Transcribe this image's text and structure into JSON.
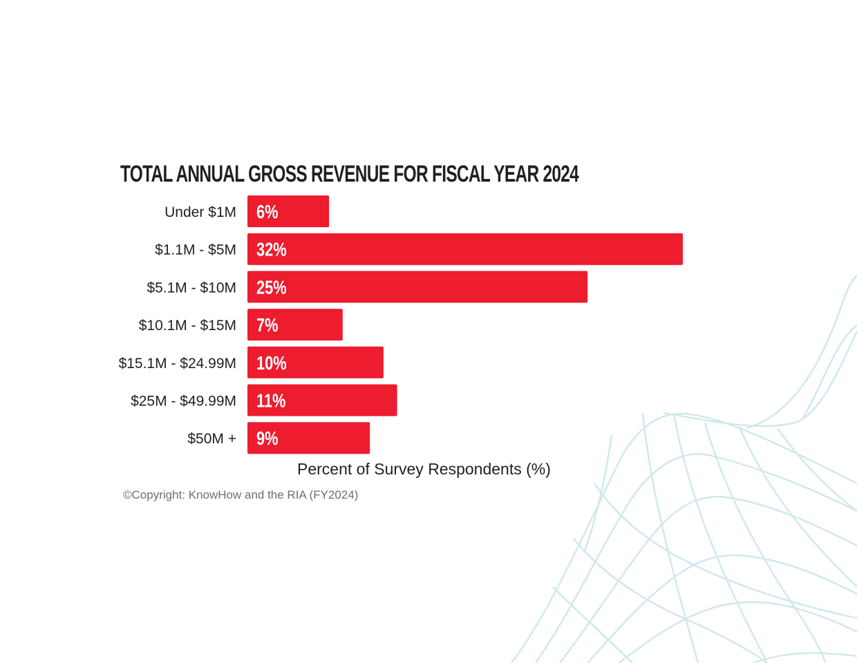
{
  "chart_data": {
    "type": "bar",
    "orientation": "horizontal",
    "title": "TOTAL ANNUAL GROSS REVENUE FOR FISCAL YEAR 2024",
    "categories": [
      "Under $1M",
      "$1.1M - $5M",
      "$5.1M - $10M",
      "$10.1M - $15M",
      "$15.1M - $24.99M",
      "$25M - $49.99M",
      "$50M +"
    ],
    "values": [
      6,
      32,
      25,
      7,
      10,
      11,
      9
    ],
    "value_labels": [
      "6%",
      "32%",
      "25%",
      "7%",
      "10%",
      "11%",
      "9%"
    ],
    "xlabel": "Percent of Survey Respondents (%)",
    "ylabel": "",
    "xlim": [
      0,
      32
    ],
    "grid": false,
    "bar_color": "#ed1c2e"
  },
  "footer": {
    "copyright": "©Copyright: KnowHow and the RIA (FY2024)"
  },
  "colors": {
    "bar": "#ed1c2e",
    "text": "#231f20",
    "muted_text": "#6d6e71",
    "decoration": "#cfe8ec"
  }
}
